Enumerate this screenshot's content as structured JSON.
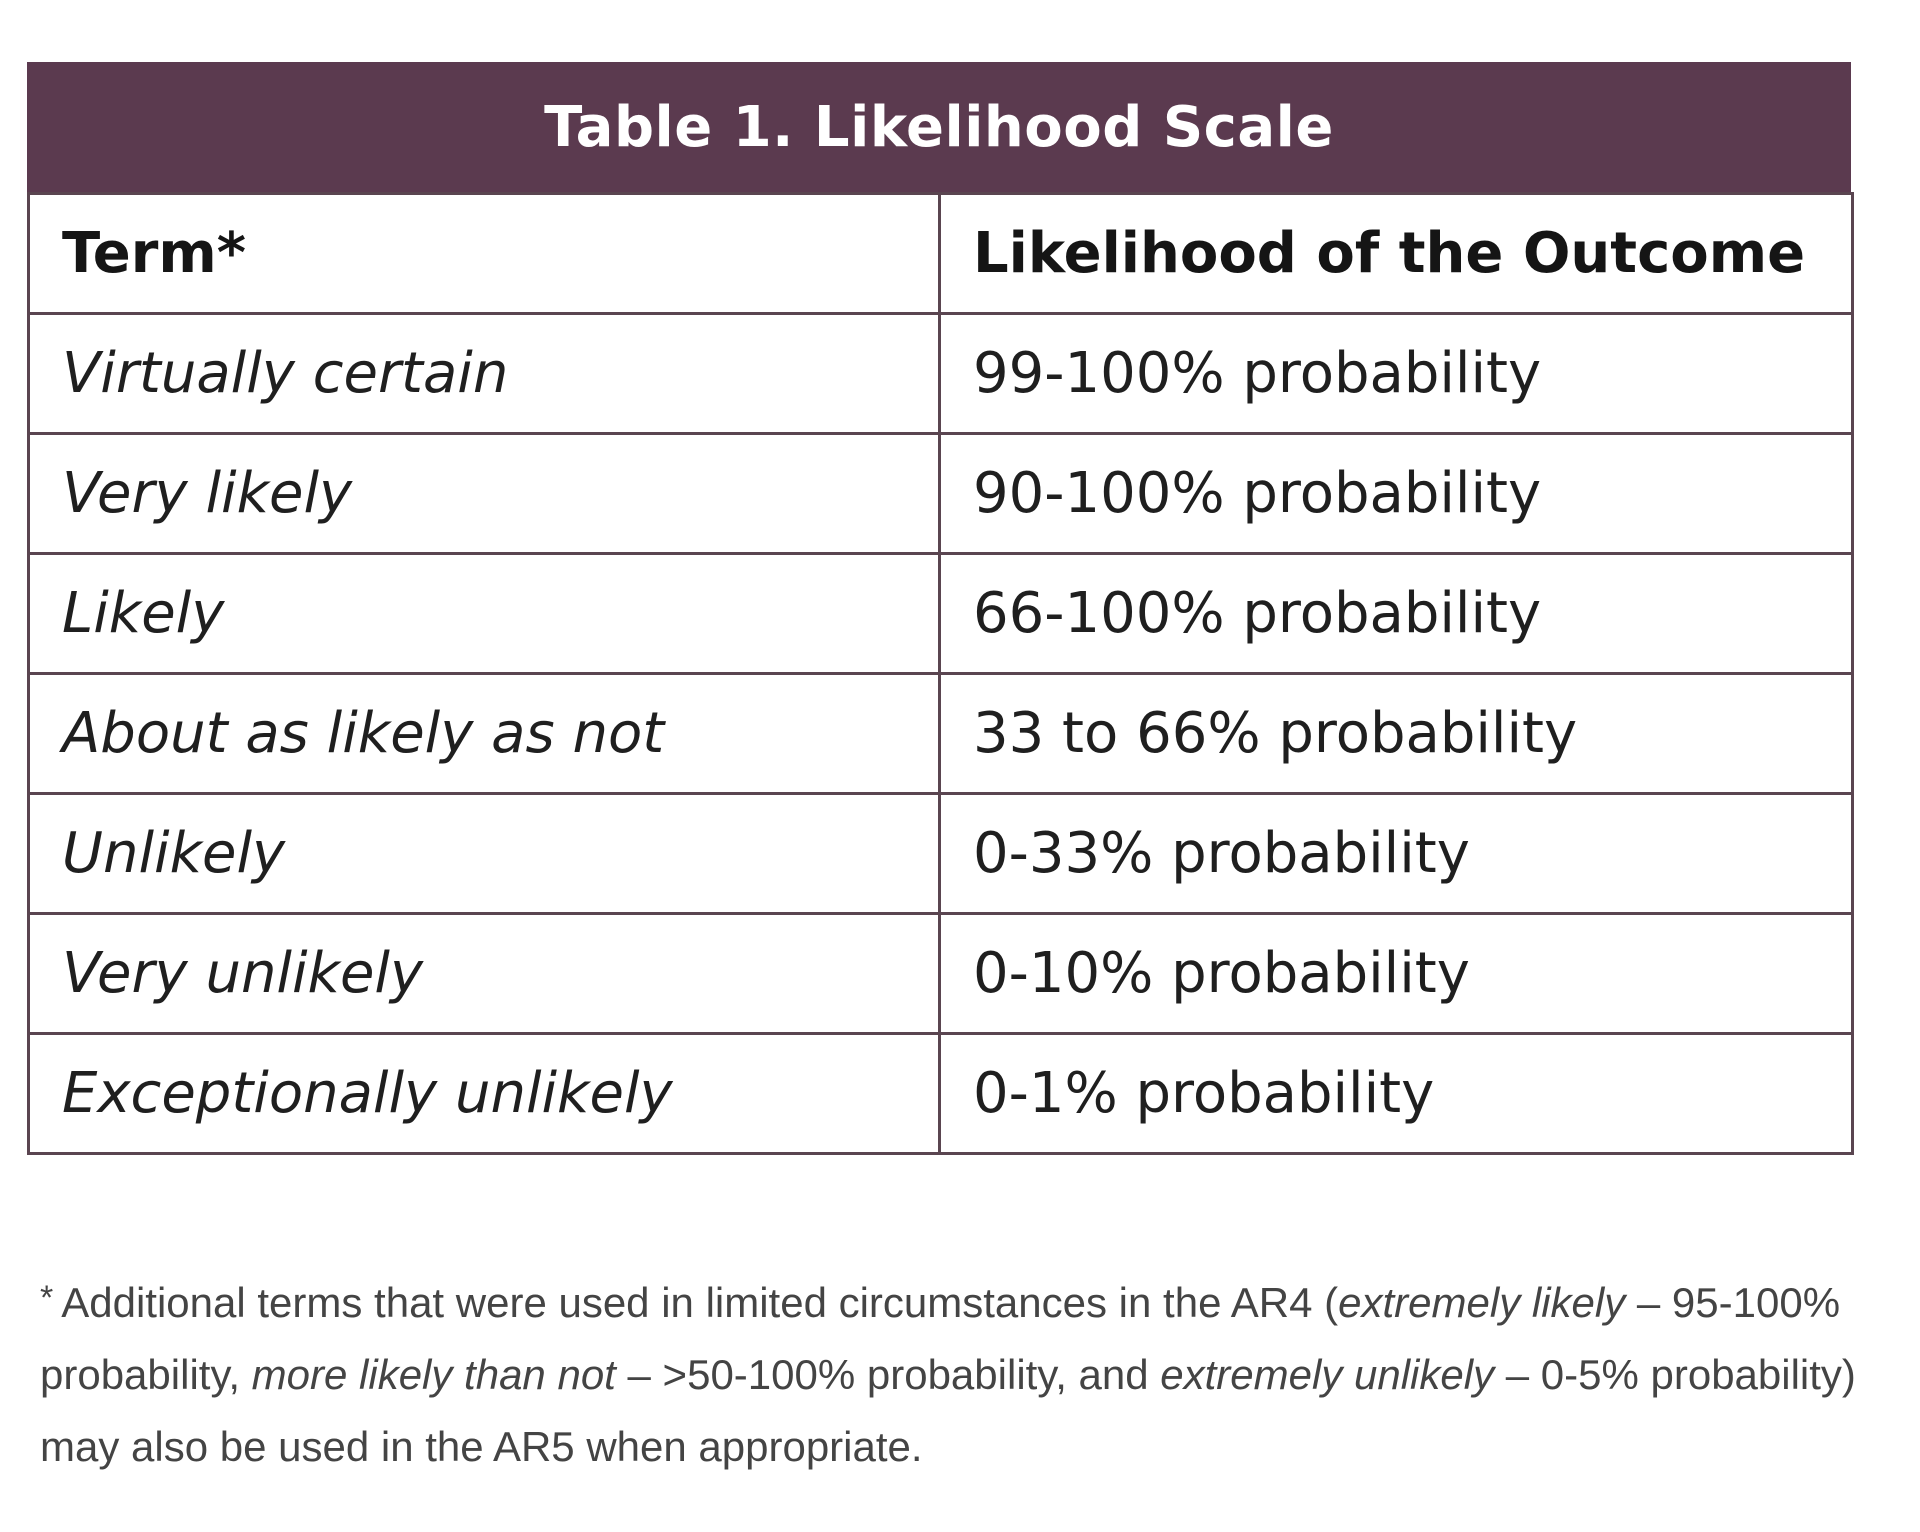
{
  "table": {
    "title": "Table 1. Likelihood Scale",
    "headers": [
      "Term*",
      "Likelihood of the Outcome"
    ],
    "rows": [
      {
        "term": "Virtually certain",
        "likelihood": "99-100% probability"
      },
      {
        "term": "Very likely",
        "likelihood": "90-100% probability"
      },
      {
        "term": "Likely",
        "likelihood": "66-100% probability"
      },
      {
        "term": "About as likely as not",
        "likelihood": "33 to 66% probability"
      },
      {
        "term": "Unlikely",
        "likelihood": "0-33% probability"
      },
      {
        "term": "Very unlikely",
        "likelihood": "0-10% probability"
      },
      {
        "term": "Exceptionally unlikely",
        "likelihood": "0-1% probability"
      }
    ],
    "header_color": "#5b3a4f"
  },
  "footnote": {
    "marker": "*",
    "text_1": "Additional terms that were used in limited circumstances in the AR4 (",
    "em_1": "extremely likely",
    "text_2": " – 95-100% probability, ",
    "em_2": "more likely than not",
    "text_3": " – >50-100% probability, and ",
    "em_3": "extremely unlikely",
    "text_4": " – 0-5% probability) may also be used in the AR5 when appropriate."
  }
}
